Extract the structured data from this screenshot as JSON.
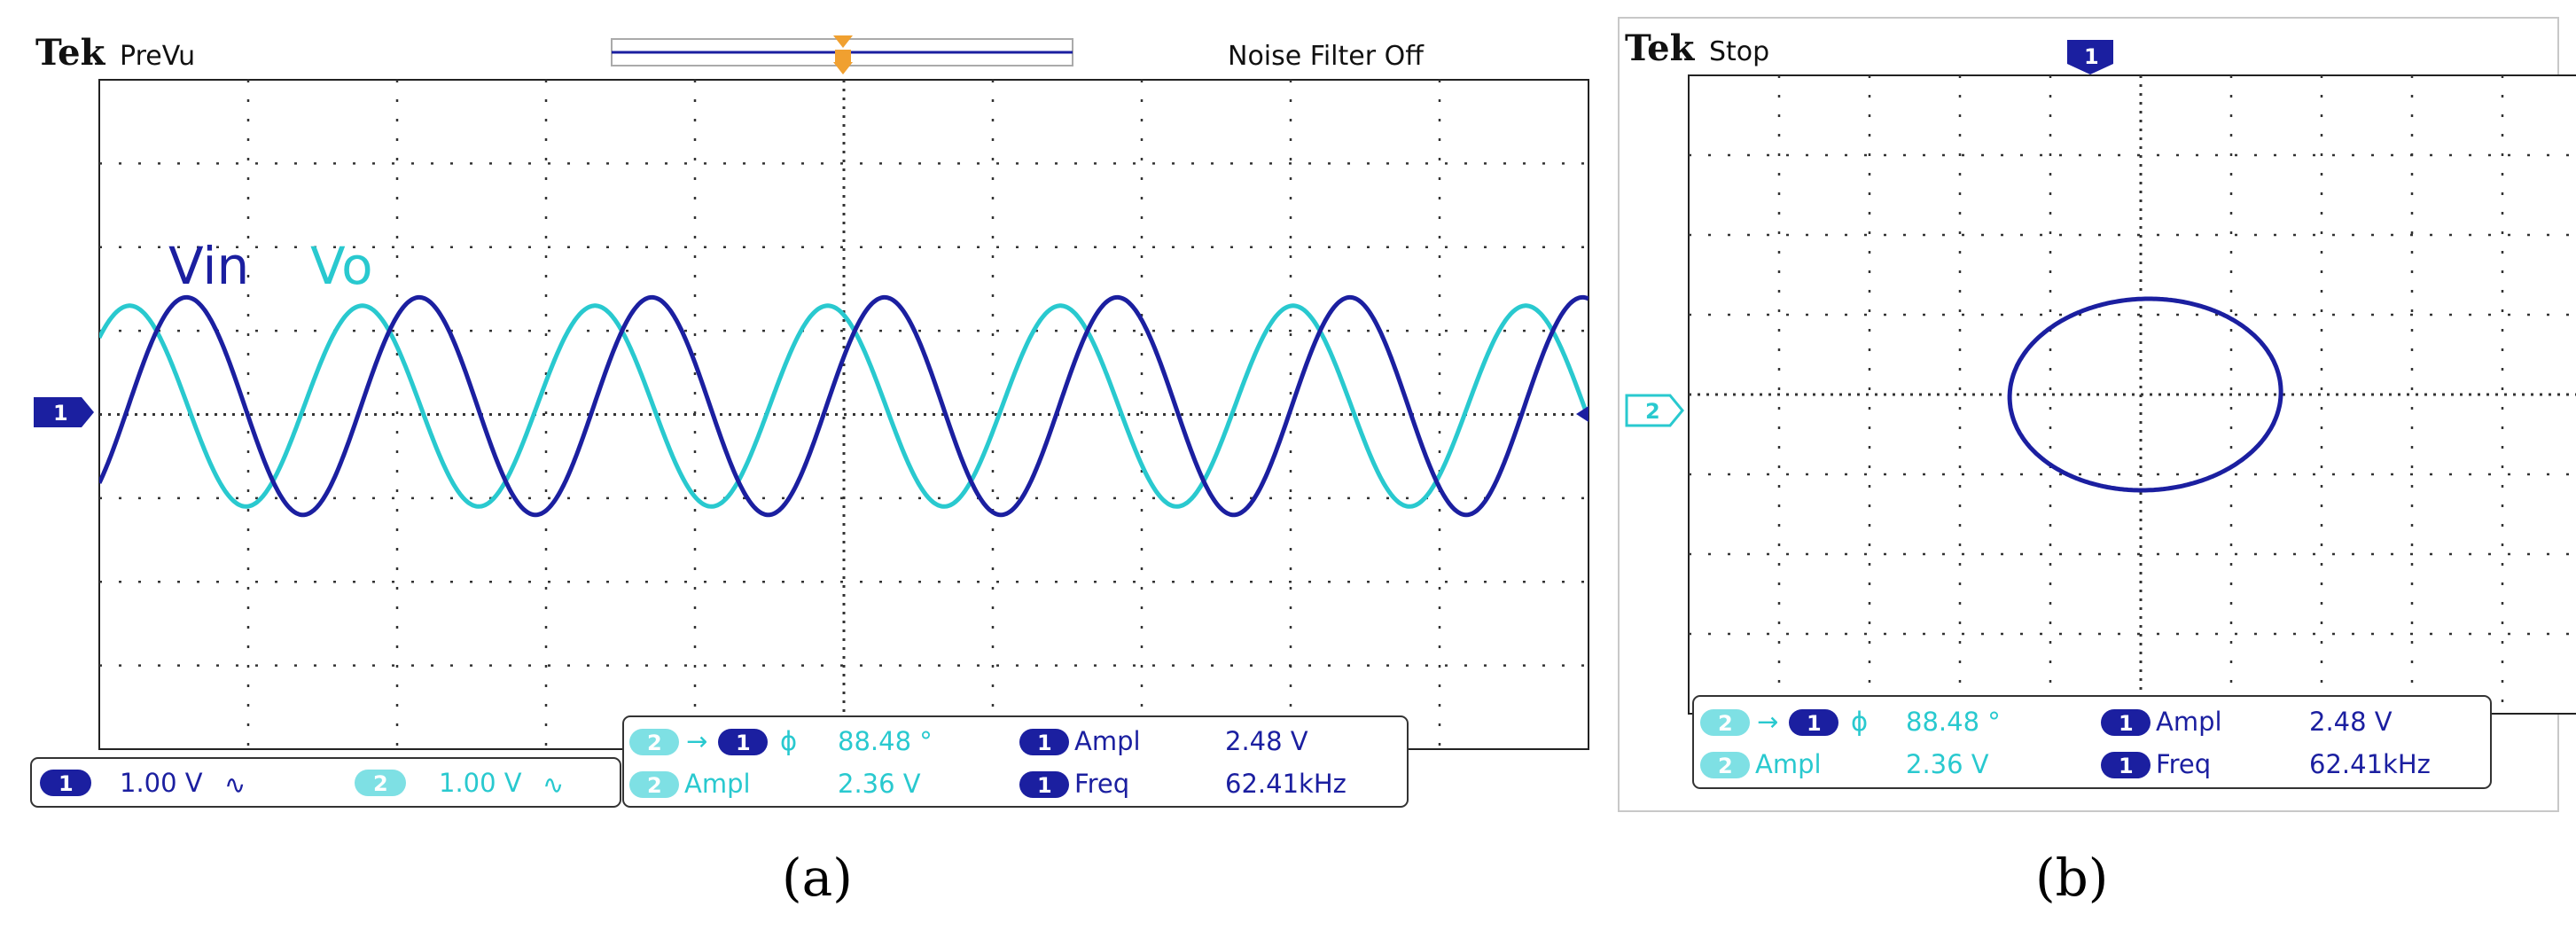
{
  "panels": [
    {
      "id": "a",
      "brand": "Tek",
      "mode": "PreVu",
      "filter_text": "Noise Filter Off",
      "caption": "(a)",
      "trace_labels": {
        "vin": "Vin",
        "vo": "Vo"
      },
      "ch1_marker": "1",
      "channel_settings": [
        {
          "channel": "1",
          "scale": "1.00 V",
          "coupling": "∿"
        },
        {
          "channel": "2",
          "scale": "1.00 V",
          "coupling": "∿"
        }
      ]
    },
    {
      "id": "b",
      "brand": "Tek",
      "mode": "Stop",
      "caption": "(b)",
      "top_marker": "1",
      "ch2_marker": "2"
    }
  ],
  "measurements": {
    "phase": {
      "from": "2",
      "to": "1",
      "symbol": "ϕ",
      "value": "88.48 °"
    },
    "ch1_ampl": {
      "channel": "1",
      "label": "Ampl",
      "value": "2.48 V"
    },
    "ch2_ampl": {
      "channel": "2",
      "label": "Ampl",
      "value": "2.36 V"
    },
    "ch1_freq": {
      "channel": "1",
      "label": "Freq",
      "value": "62.41kHz"
    }
  },
  "colors": {
    "ch1": "#1b1fa0",
    "ch2": "#29c9cf",
    "trigger": "#f0a030",
    "grid": "#333333"
  },
  "chart_data": [
    {
      "type": "line",
      "view": "time-domain",
      "x_divisions": 10,
      "y_divisions": 8,
      "y_unit_per_div": "1.00 V",
      "series": [
        {
          "name": "Vin",
          "channel": "1",
          "amplitude_div": 1.3,
          "cycles": 6.4,
          "phase_deg": -45
        },
        {
          "name": "Vo",
          "channel": "2",
          "amplitude_div": 1.2,
          "cycles": 6.4,
          "phase_deg": 43
        }
      ]
    },
    {
      "type": "scatter",
      "view": "XY",
      "x_divisions": 10,
      "y_divisions": 8,
      "lissajous": {
        "x_amplitude_div": 1.5,
        "y_amplitude_div": 1.2,
        "phase_deg": 88.48
      }
    }
  ]
}
